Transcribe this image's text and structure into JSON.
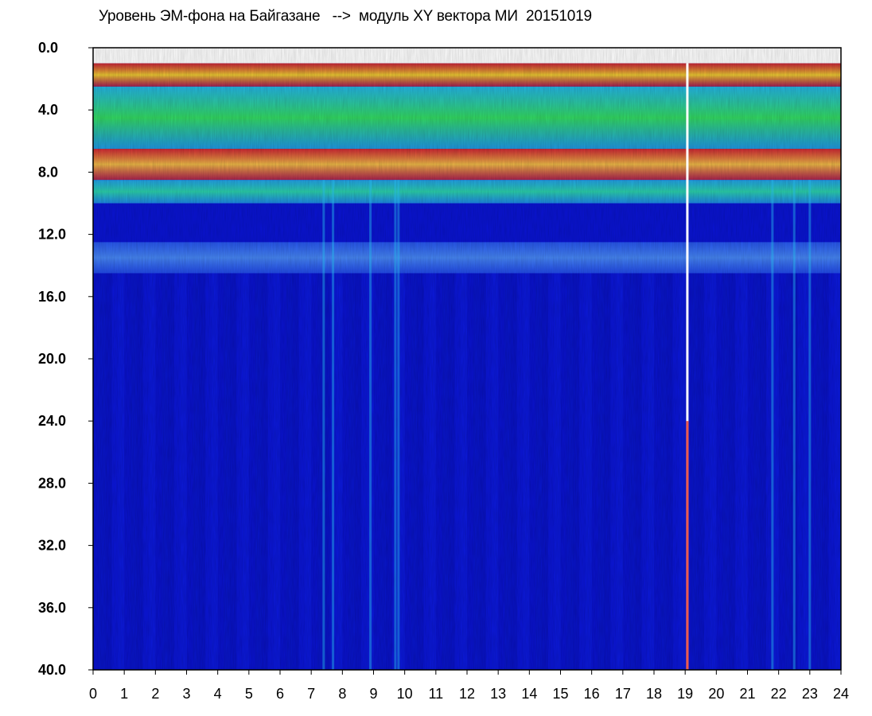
{
  "chart_data": {
    "type": "heatmap",
    "title": "Уровень ЭМ-фона на Байгазане   -->  модуль XY вектора МИ  20151019",
    "xlabel": "",
    "ylabel": "",
    "xlim": [
      0,
      24
    ],
    "ylim": [
      0.0,
      40.0
    ],
    "y_inverted": true,
    "x_ticks": [
      "0",
      "1",
      "2",
      "3",
      "4",
      "5",
      "6",
      "7",
      "8",
      "9",
      "10",
      "11",
      "12",
      "13",
      "14",
      "15",
      "16",
      "17",
      "18",
      "19",
      "20",
      "21",
      "22",
      "23",
      "24"
    ],
    "y_ticks": [
      "0.0",
      "4.0",
      "8.0",
      "12.0",
      "16.0",
      "20.0",
      "24.0",
      "28.0",
      "32.0",
      "36.0",
      "40.0"
    ],
    "colormap": [
      "#0a14d2",
      "#1f5cf0",
      "#22c6ea",
      "#2fe86a",
      "#d8f02a",
      "#f03a1a",
      "#ffe0e0"
    ],
    "background_color": "#0a14d2",
    "bands": [
      {
        "y_from": 1.0,
        "y_to": 2.5,
        "level": "red-yellow"
      },
      {
        "y_from": 2.5,
        "y_to": 6.5,
        "level": "cyan-green"
      },
      {
        "y_from": 6.5,
        "y_to": 8.5,
        "level": "red"
      },
      {
        "y_from": 8.5,
        "y_to": 10.0,
        "level": "cyan"
      },
      {
        "y_from": 12.5,
        "y_to": 14.5,
        "level": "light-blue"
      }
    ],
    "vertical_streaks": [
      {
        "x": 7.4,
        "level": "cyan"
      },
      {
        "x": 7.7,
        "level": "cyan"
      },
      {
        "x": 8.9,
        "level": "cyan"
      },
      {
        "x": 9.7,
        "level": "cyan"
      },
      {
        "x": 9.8,
        "level": "cyan"
      },
      {
        "x": 19.07,
        "level": "white-red"
      },
      {
        "x": 21.8,
        "level": "cyan"
      },
      {
        "x": 22.5,
        "level": "cyan"
      },
      {
        "x": 23.0,
        "level": "cyan"
      }
    ]
  }
}
